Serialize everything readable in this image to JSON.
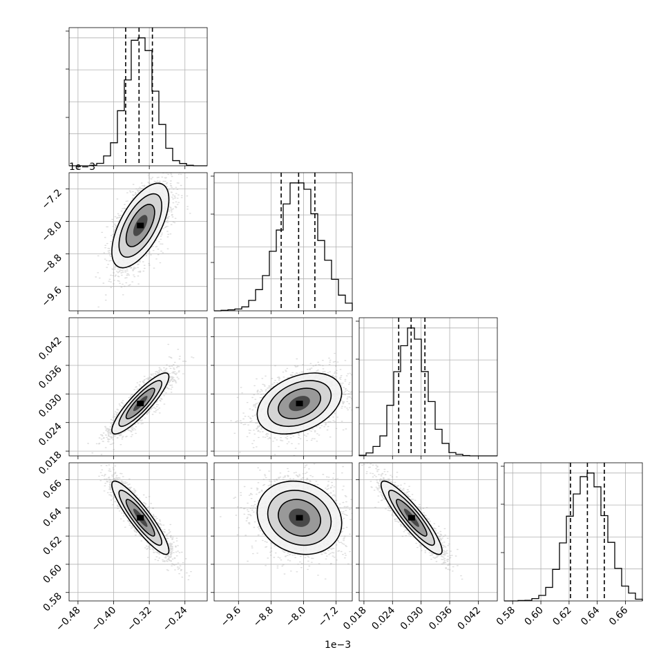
{
  "colors": {
    "grid": "#b0b0b0",
    "line": "#000000",
    "scatter": "#9e9e9e",
    "background": "#ffffff"
  },
  "chart_data": {
    "type": "corner",
    "parameters": [
      {
        "id": "p0",
        "range": [
          -0.5,
          -0.19
        ],
        "ticks": [
          -0.48,
          -0.4,
          -0.32,
          -0.24
        ],
        "tick_labels": [
          "−0.48",
          "−0.40",
          "−0.32",
          "−0.24"
        ],
        "mean": -0.34,
        "sd": 0.032,
        "quantiles": [
          -0.373,
          -0.343,
          -0.313
        ]
      },
      {
        "id": "p1",
        "range": [
          -10.2,
          -6.8
        ],
        "ticks": [
          -9.6,
          -8.8,
          -8.0,
          -7.2
        ],
        "tick_labels": [
          "−9.6",
          "−8.8",
          "−8.0",
          "−7.2"
        ],
        "mean": -8.1,
        "sd": 0.52,
        "quantiles": [
          -8.55,
          -8.12,
          -7.72
        ],
        "offset_text": "1e−3"
      },
      {
        "id": "p2",
        "range": [
          0.017,
          0.046
        ],
        "ticks": [
          0.018,
          0.024,
          0.03,
          0.036,
          0.042
        ],
        "tick_labels": [
          "0.018",
          "0.024",
          "0.030",
          "0.036",
          "0.042"
        ],
        "mean": 0.028,
        "sd": 0.0032,
        "quantiles": [
          0.0253,
          0.0279,
          0.0308
        ]
      },
      {
        "id": "p3",
        "range": [
          0.574,
          0.672
        ],
        "ticks": [
          0.58,
          0.6,
          0.62,
          0.64,
          0.66
        ],
        "tick_labels": [
          "0.58",
          "0.60",
          "0.62",
          "0.64",
          "0.66"
        ],
        "mean": 0.633,
        "sd": 0.013,
        "quantiles": [
          0.621,
          0.633,
          0.645
        ]
      }
    ],
    "pairs": [
      {
        "row": 1,
        "col": 0,
        "rho": 0.62
      },
      {
        "row": 2,
        "col": 0,
        "rho": 0.88
      },
      {
        "row": 2,
        "col": 1,
        "rho": 0.35
      },
      {
        "row": 3,
        "col": 0,
        "rho": -0.9
      },
      {
        "row": 3,
        "col": 1,
        "rho": -0.15
      },
      {
        "row": 3,
        "col": 2,
        "rho": -0.9
      }
    ],
    "histogram_bins": 20,
    "contour_levels": [
      0.5,
      1.0,
      1.5,
      2.0
    ],
    "grid": true
  }
}
